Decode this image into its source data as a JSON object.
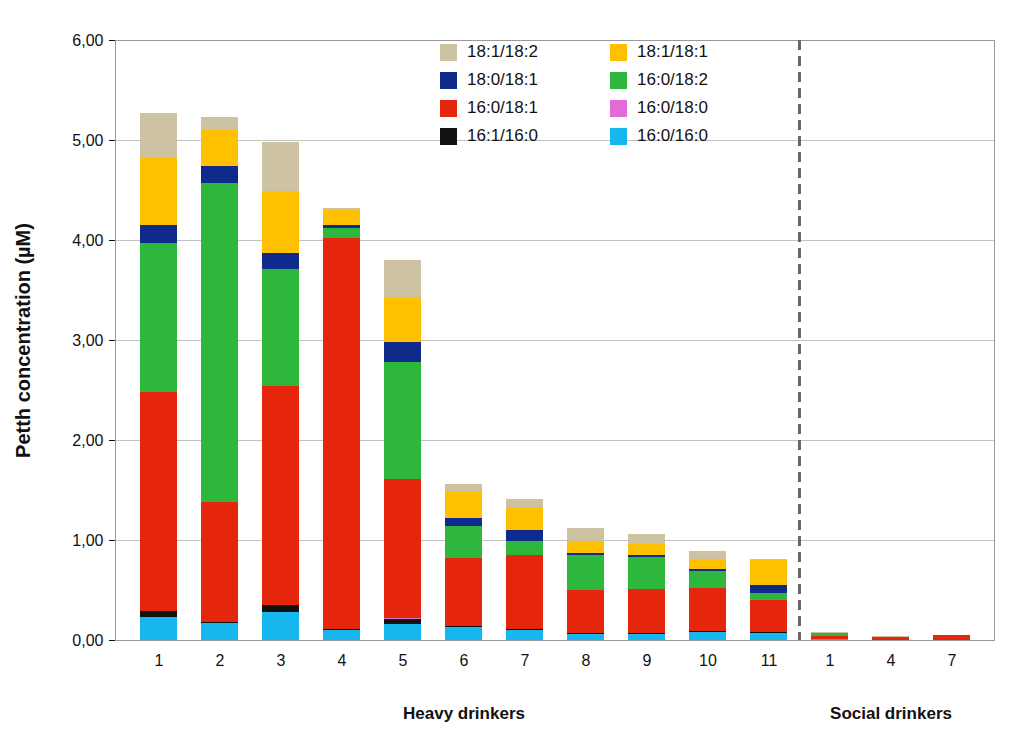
{
  "chart_data": {
    "type": "bar",
    "stacked": true,
    "y_label": "Petth concentration (µM)",
    "annotations": [
      "Heavy drinkers",
      "Social drinkers"
    ],
    "categories": [
      "1",
      "2",
      "3",
      "4",
      "5",
      "6",
      "7",
      "8",
      "9",
      "10",
      "11",
      "1",
      "4",
      "7"
    ],
    "series": [
      {
        "name": "16:0/16:0",
        "color": "#15b7ee",
        "values": [
          0.23,
          0.17,
          0.28,
          0.1,
          0.16,
          0.13,
          0.1,
          0.06,
          0.06,
          0.08,
          0.07,
          0.01,
          0,
          0
        ]
      },
      {
        "name": "16:1/16:0",
        "color": "#111111",
        "values": [
          0.06,
          0.01,
          0.07,
          0.01,
          0.05,
          0.01,
          0.01,
          0.01,
          0.01,
          0.01,
          0.01,
          0,
          0,
          0
        ]
      },
      {
        "name": "16:0/18:0",
        "color": "#e36bd6",
        "values": [
          0,
          0,
          0,
          0,
          0.01,
          0,
          0,
          0,
          0,
          0,
          0,
          0,
          0,
          0
        ]
      },
      {
        "name": "16:0/18:1",
        "color": "#e5260d",
        "values": [
          2.19,
          1.2,
          2.19,
          3.91,
          1.39,
          0.68,
          0.74,
          0.43,
          0.44,
          0.43,
          0.32,
          0.03,
          0.03,
          0.05
        ]
      },
      {
        "name": "16:0/18:2",
        "color": "#2db83d",
        "values": [
          1.49,
          3.19,
          1.17,
          0.1,
          1.17,
          0.32,
          0.14,
          0.35,
          0.32,
          0.17,
          0.07,
          0.03,
          0,
          0
        ]
      },
      {
        "name": "18:0/18:1",
        "color": "#0e2b8c",
        "values": [
          0.18,
          0.17,
          0.16,
          0.03,
          0.2,
          0.08,
          0.11,
          0.02,
          0.02,
          0.02,
          0.08,
          0,
          0,
          0
        ]
      },
      {
        "name": "18:1/18:1",
        "color": "#ffc000",
        "values": [
          0.67,
          0.36,
          0.62,
          0.15,
          0.45,
          0.27,
          0.23,
          0.12,
          0.11,
          0.1,
          0.25,
          0,
          0,
          0
        ]
      },
      {
        "name": "18:1/18:2",
        "color": "#cdc3a3",
        "values": [
          0.45,
          0.13,
          0.49,
          0.02,
          0.37,
          0.07,
          0.08,
          0.13,
          0.1,
          0.08,
          0.01,
          0.01,
          0.01,
          0
        ]
      }
    ],
    "ylim": [
      0,
      6
    ],
    "yticks": [
      {
        "value": 0,
        "label": "0,00"
      },
      {
        "value": 1,
        "label": "1,00"
      },
      {
        "value": 2,
        "label": "2,00"
      },
      {
        "value": 3,
        "label": "3,00"
      },
      {
        "value": 4,
        "label": "4,00"
      },
      {
        "value": 5,
        "label": "5,00"
      },
      {
        "value": 6,
        "label": "6,00"
      }
    ],
    "grid": true,
    "legend": "top"
  }
}
